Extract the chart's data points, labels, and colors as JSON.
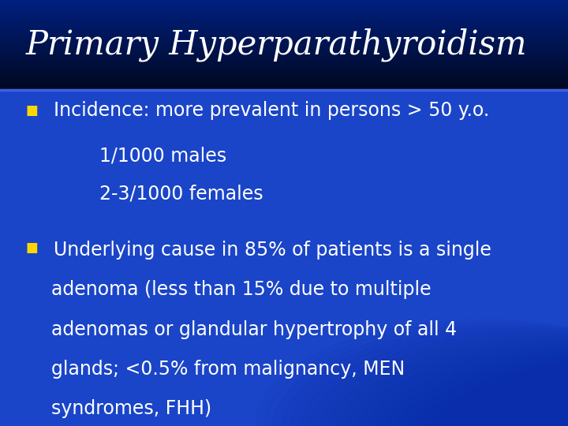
{
  "title": "Primary Hyperparathyroidism",
  "title_color": "#FFFFFF",
  "title_fontsize": 30,
  "bg_top_color": "#000820",
  "bg_title_color": "#001060",
  "bg_body_color": "#1a40c0",
  "bullet_color": "#FFD700",
  "text_color": "#FFFFFF",
  "bullet1_main": "Incidence: more prevalent in persons > 50 y.o.",
  "bullet1_sub1": "1/1000 males",
  "bullet1_sub2": "2-3/1000 females",
  "bullet2_line1": "Underlying cause in 85% of patients is a single",
  "bullet2_line2": "adenoma (less than 15% due to multiple",
  "bullet2_line3": "adenomas or glandular hypertrophy of all 4",
  "bullet2_line4": "glands; <0.5% from malignancy, MEN",
  "bullet2_line5": "syndromes, FHH)",
  "body_fontsize": 17,
  "title_split": 0.21,
  "figwidth": 7.2,
  "figheight": 5.4,
  "dpi": 100
}
